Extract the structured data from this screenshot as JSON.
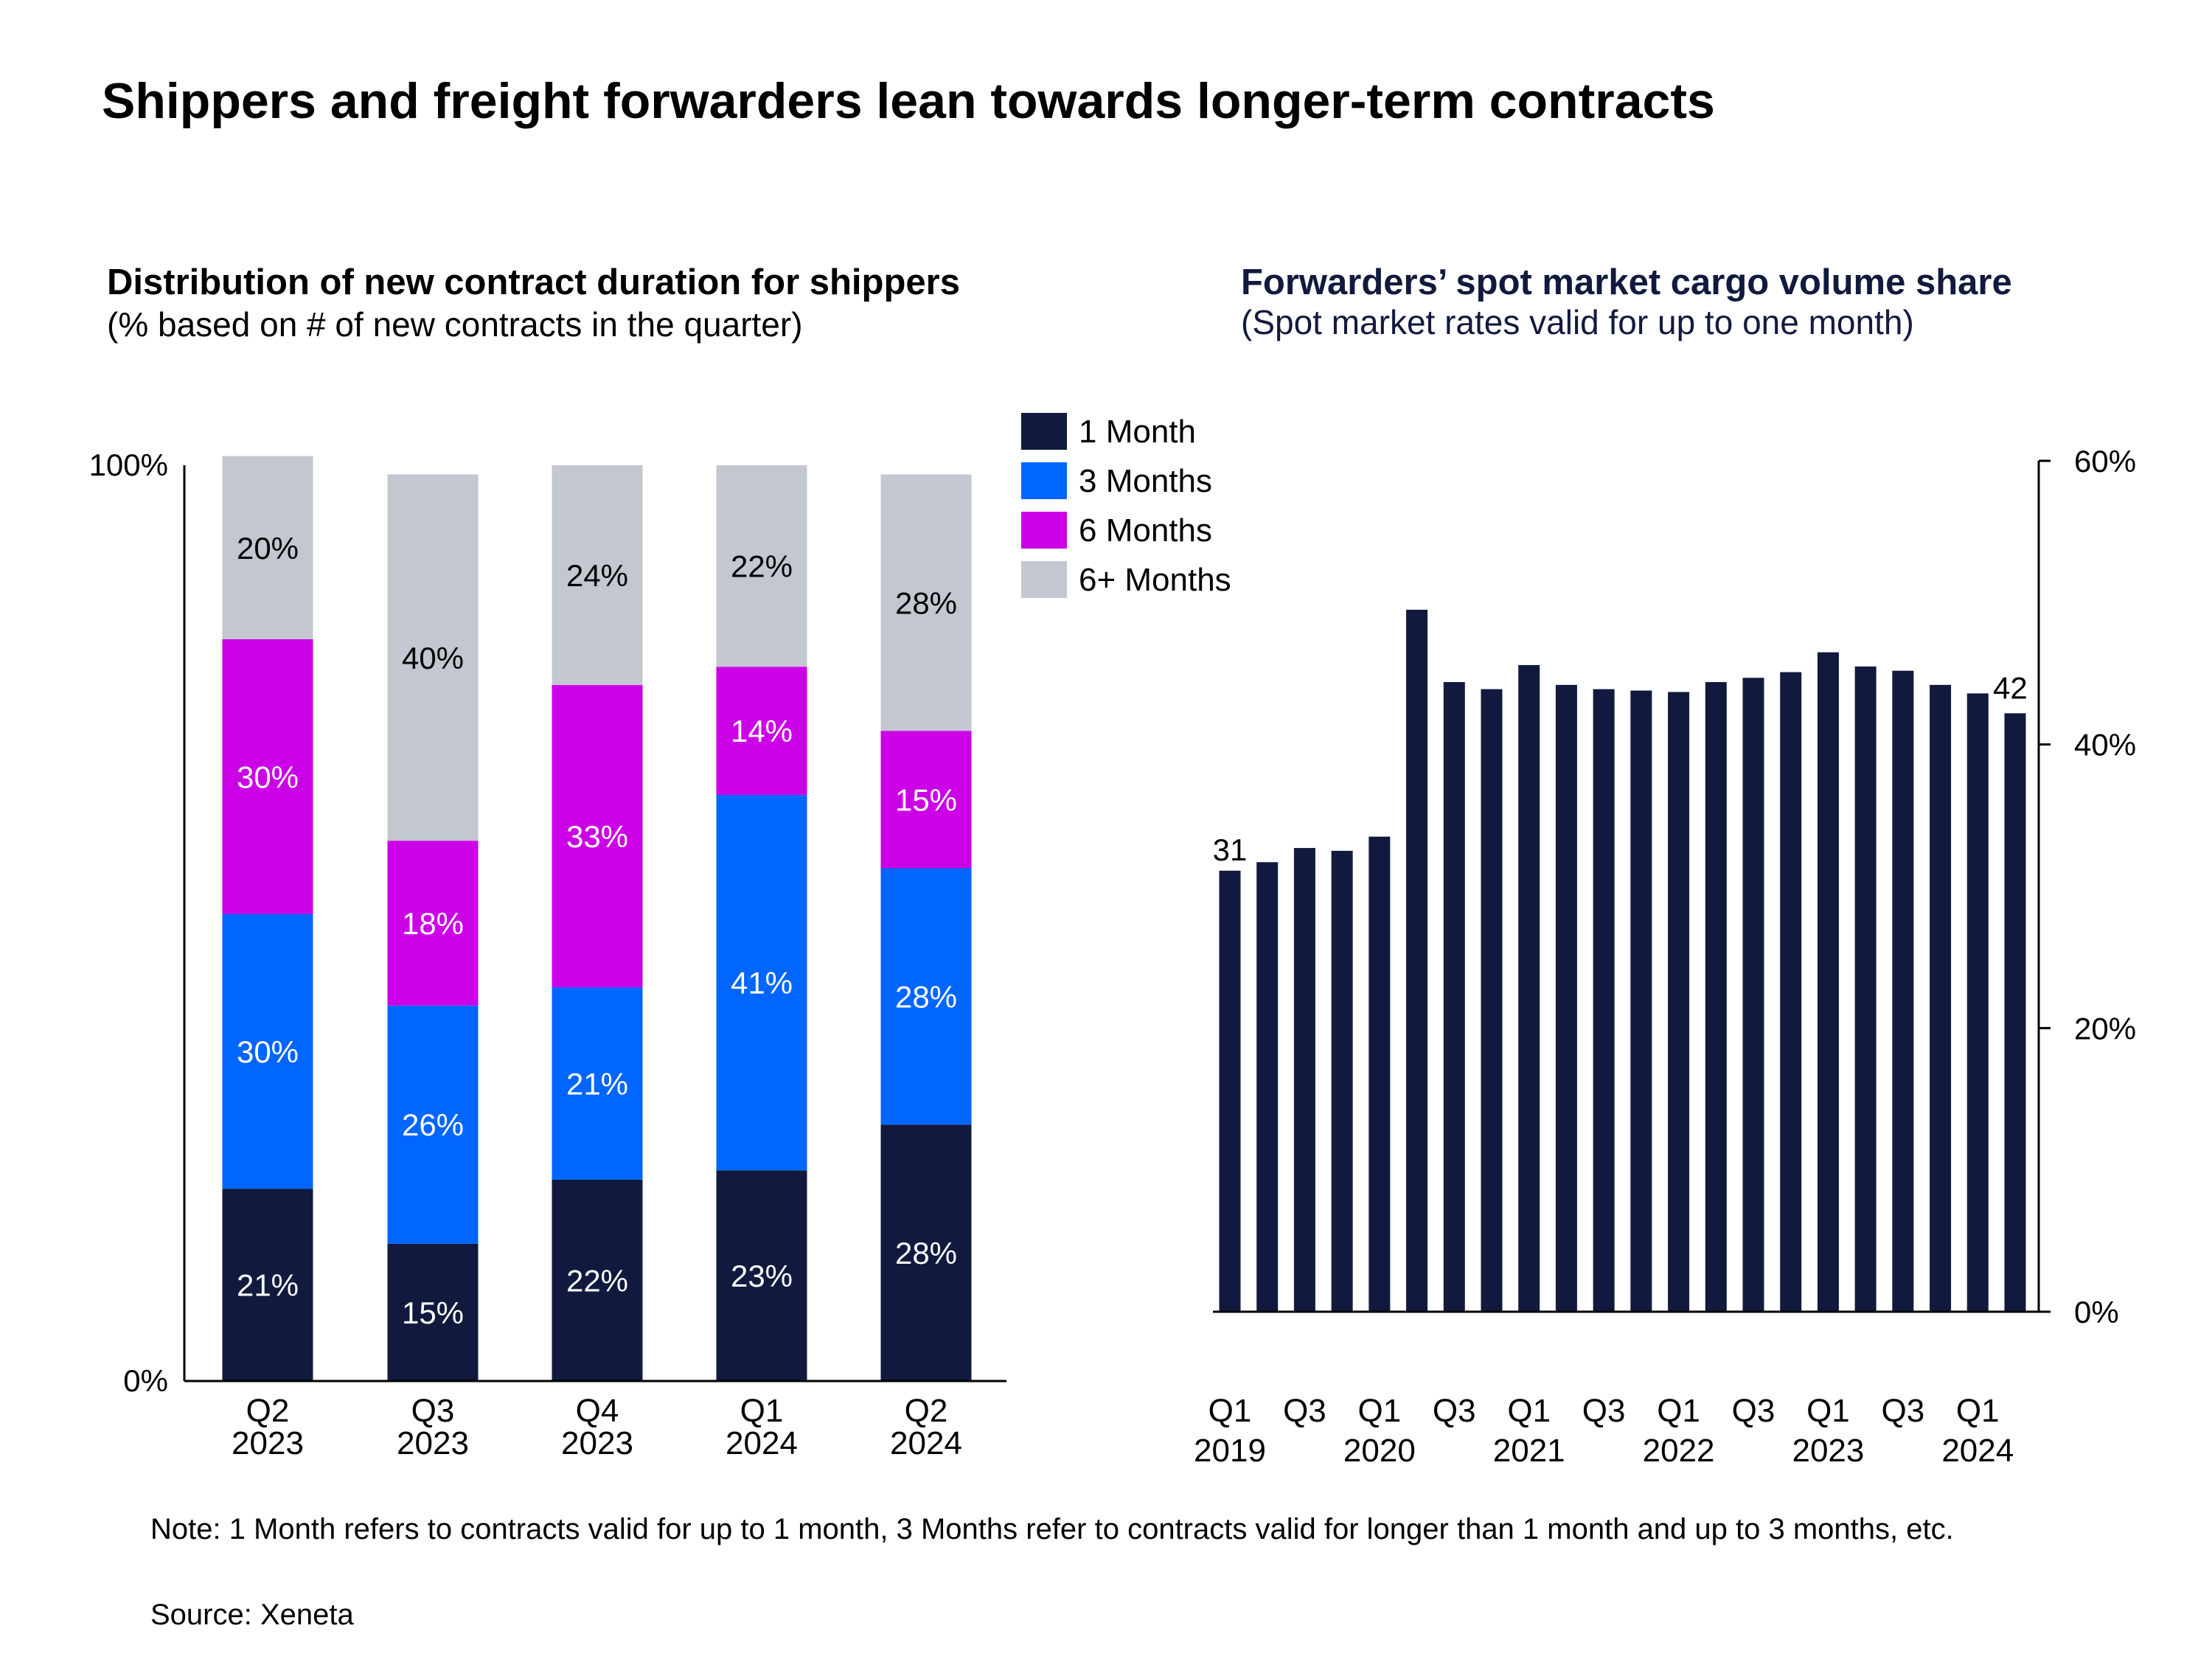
{
  "title": "Shippers and freight forwarders lean towards longer-term contracts",
  "note": "Note: 1 Month refers to contracts valid for up to 1 month, 3 Months refer to contracts valid for longer than 1 month and up to 3 months, etc.",
  "source": "Source: Xeneta",
  "colors": {
    "one_month": "#111a3e",
    "three_months": "#0066ff",
    "six_months": "#cc00e6",
    "six_plus_months": "#c2c7d0",
    "title_navy": "#111a3e"
  },
  "chart_data": [
    {
      "type": "bar",
      "stacked": true,
      "title": "Distribution of new contract duration for shippers",
      "subtitle": "(% based on # of new contracts in the quarter)",
      "categories": [
        [
          "Q2",
          "2023"
        ],
        [
          "Q3",
          "2023"
        ],
        [
          "Q4",
          "2023"
        ],
        [
          "Q1",
          "2024"
        ],
        [
          "Q2",
          "2024"
        ]
      ],
      "series": [
        {
          "name": "1 Month",
          "color": "#111a3e",
          "values": [
            21,
            15,
            22,
            23,
            28
          ]
        },
        {
          "name": "3 Months",
          "color": "#0066ff",
          "values": [
            30,
            26,
            21,
            41,
            28
          ]
        },
        {
          "name": "6 Months",
          "color": "#cc00e6",
          "values": [
            30,
            18,
            33,
            14,
            15
          ]
        },
        {
          "name": "6+ Months",
          "color": "#c2c7d0",
          "values": [
            20,
            40,
            24,
            22,
            28
          ]
        }
      ],
      "ylim": [
        0,
        100
      ],
      "yticks": [
        "0%",
        "100%"
      ],
      "legend": "top-right",
      "grid": false
    },
    {
      "type": "bar",
      "title": "Forwarders’ spot market cargo volume share",
      "subtitle": "(Spot market rates valid for up to one month)",
      "categories": [
        "Q1 2019",
        "Q2 2019",
        "Q3 2019",
        "Q4 2019",
        "Q1 2020",
        "Q2 2020",
        "Q3 2020",
        "Q4 2020",
        "Q1 2021",
        "Q2 2021",
        "Q3 2021",
        "Q4 2021",
        "Q1 2022",
        "Q2 2022",
        "Q3 2022",
        "Q4 2022",
        "Q1 2023",
        "Q2 2023",
        "Q3 2023",
        "Q4 2023",
        "Q1 2024",
        "Q2 2024"
      ],
      "values": [
        31.1,
        31.7,
        32.7,
        32.5,
        33.5,
        49.5,
        44.4,
        43.9,
        45.6,
        44.2,
        43.9,
        43.8,
        43.7,
        44.4,
        44.7,
        45.1,
        46.5,
        45.5,
        45.2,
        44.2,
        43.6,
        42.2
      ],
      "data_labels": {
        "first": "31",
        "last": "42"
      },
      "ylim": [
        0,
        60
      ],
      "yticks": [
        "0%",
        "20%",
        "40%",
        "60%"
      ],
      "yaxis_side": "right",
      "color": "#111a3e",
      "grid": false
    }
  ]
}
